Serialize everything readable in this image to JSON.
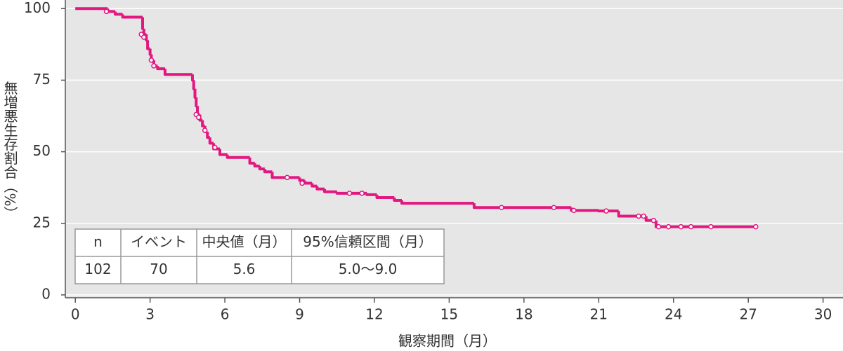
{
  "chart_data": {
    "type": "km",
    "xlabel": "観察期間（月）",
    "ylabel": "無増悪生存割合（%）",
    "xlim": [
      -0.4,
      30.8
    ],
    "ylim": [
      -1,
      103
    ],
    "xticks": [
      0,
      3,
      6,
      9,
      12,
      15,
      18,
      21,
      24,
      27,
      30
    ],
    "yticks": [
      0,
      25,
      50,
      75,
      100
    ],
    "grid": true,
    "color": "#e2177f",
    "series": [
      {
        "x": [
          0,
          1.3,
          1.6,
          1.9,
          2.7,
          2.75,
          2.85,
          2.9,
          3.0,
          3.05,
          3.15,
          3.3,
          3.6,
          4.7,
          4.75,
          4.8,
          4.85,
          4.9,
          5.0,
          5.1,
          5.2,
          5.3,
          5.4,
          5.55,
          5.8,
          6.1,
          7.0,
          7.2,
          7.4,
          7.6,
          7.9,
          9.0,
          9.2,
          9.5,
          9.7,
          10.0,
          10.5,
          11.7,
          12.1,
          12.8,
          13.1,
          16.0,
          19.9,
          21.0,
          21.8,
          22.9,
          23.3,
          27.3
        ],
        "values": [
          100,
          99,
          98,
          97,
          93,
          91,
          89,
          86,
          84,
          82,
          80,
          79,
          77,
          75,
          72,
          69,
          66,
          63,
          61,
          59,
          57,
          55,
          53,
          51,
          49,
          48,
          46,
          45,
          44,
          43,
          41,
          40,
          39,
          38,
          37,
          36,
          35.5,
          35,
          34,
          33,
          32,
          30.5,
          29.5,
          29.3,
          27.5,
          26,
          23.8,
          23.8
        ]
      },
      {
        "x": [
          1.25,
          2.65,
          2.75,
          3.05,
          3.15,
          4.85,
          4.95,
          5.2,
          5.6,
          8.5,
          9.1,
          11.0,
          11.5,
          17.1,
          19.2,
          20.0,
          21.3,
          22.6,
          22.8,
          23.2,
          23.4,
          23.8,
          24.3,
          24.7,
          25.5,
          27.3
        ],
        "values": [
          99,
          91,
          90,
          82,
          80,
          63,
          62,
          57.5,
          51.5,
          41,
          39,
          35.5,
          35.5,
          30.5,
          30.5,
          29.5,
          29.3,
          27.5,
          27.5,
          26,
          23.8,
          23.8,
          23.8,
          23.8,
          23.8,
          23.8
        ]
      }
    ],
    "table": {
      "header": [
        "n",
        "イベント",
        "中央値（月）",
        "95%信頼区間（月）"
      ],
      "rows": [
        [
          "102",
          "70",
          "5.6",
          "5.0〜9.0"
        ]
      ]
    }
  }
}
